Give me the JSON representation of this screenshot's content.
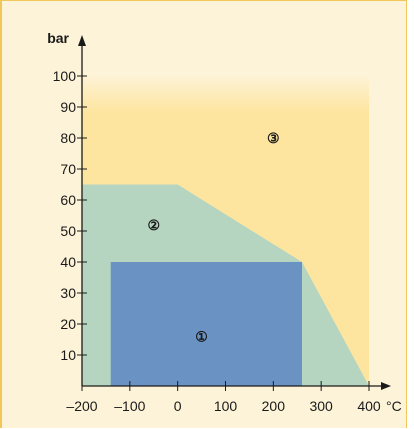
{
  "chart_data": {
    "type": "area",
    "xlabel": "°C",
    "ylabel": "bar",
    "xlim": [
      -200,
      400
    ],
    "ylim": [
      0,
      100
    ],
    "x_ticks": [
      -200,
      -100,
      0,
      100,
      200,
      300,
      400
    ],
    "y_ticks": [
      10,
      20,
      30,
      40,
      50,
      60,
      70,
      80,
      90,
      100
    ],
    "x_tick_labels": [
      "–200",
      "–100",
      "0",
      "100",
      "200",
      "300",
      "400"
    ],
    "y_tick_labels": [
      "10",
      "20",
      "30",
      "40",
      "50",
      "60",
      "70",
      "80",
      "90",
      "100"
    ],
    "grid": false,
    "regions": [
      {
        "label": "③",
        "color": "#fde5a0",
        "label_at": [
          200,
          80
        ],
        "polygon": [
          [
            -200,
            0
          ],
          [
            400,
            0
          ],
          [
            400,
            100
          ],
          [
            -200,
            100
          ]
        ]
      },
      {
        "label": "②",
        "color": "#b5d5c0",
        "label_at": [
          -50,
          52
        ],
        "polygon": [
          [
            -200,
            0
          ],
          [
            400,
            0
          ],
          [
            260,
            40
          ],
          [
            0,
            65
          ],
          [
            -200,
            65
          ]
        ]
      },
      {
        "label": "①",
        "color": "#6a93c4",
        "label_at": [
          50,
          16
        ],
        "polygon": [
          [
            -140,
            0
          ],
          [
            260,
            0
          ],
          [
            260,
            40
          ],
          [
            -140,
            40
          ]
        ]
      }
    ]
  }
}
